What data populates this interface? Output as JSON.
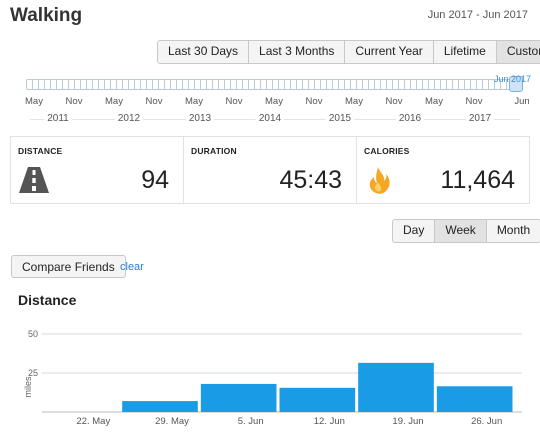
{
  "header": {
    "title": "Walking",
    "date_range": "Jun 2017 - Jun 2017"
  },
  "range_buttons": [
    "Last 30 Days",
    "Last 3 Months",
    "Current Year",
    "Lifetime",
    "Custom"
  ],
  "timeline": {
    "handle_label": "Jun 2017",
    "months": [
      "May",
      "Nov",
      "May",
      "Nov",
      "May",
      "Nov",
      "May",
      "Nov",
      "May",
      "Nov",
      "May",
      "Nov",
      "Jun"
    ],
    "years": [
      "2011",
      "2012",
      "2013",
      "2014",
      "2015",
      "2016",
      "2017"
    ]
  },
  "stats": {
    "distance": {
      "label": "DISTANCE",
      "value": "94",
      "icon": "road-icon"
    },
    "duration": {
      "label": "DURATION",
      "value": "45:43"
    },
    "calories": {
      "label": "CALORIES",
      "value": "11,464",
      "icon": "flame-icon"
    }
  },
  "period_buttons": {
    "items": [
      "Day",
      "Week",
      "Month"
    ],
    "active": "Week"
  },
  "compare": {
    "button_label": "Compare Friends",
    "clear_label": "clear"
  },
  "section_title": "Distance",
  "colors": {
    "bar": "#1a9be6",
    "link": "#2a7bd0",
    "flame": "#f5a623"
  },
  "chart_data": {
    "type": "bar",
    "categories": [
      "22. May",
      "29. May",
      "5. Jun",
      "12. Jun",
      "19. Jun",
      "26. Jun"
    ],
    "values": [
      0,
      7,
      18,
      15.5,
      31.5,
      16.5
    ],
    "ylabel": "miles",
    "yticks": [
      25,
      50
    ],
    "ylim": [
      0,
      50
    ],
    "grid": true
  }
}
